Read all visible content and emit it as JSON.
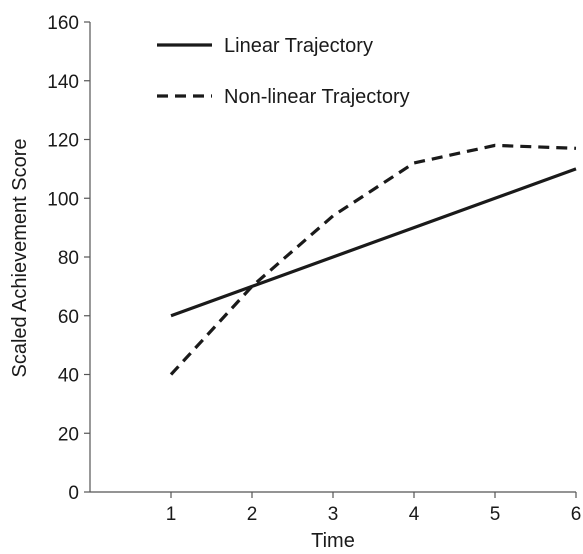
{
  "chart_data": {
    "type": "line",
    "title": "",
    "xlabel": "Time",
    "ylabel": "Scaled Achievement Score",
    "x": [
      1,
      2,
      3,
      4,
      5,
      6
    ],
    "xlim": [
      0,
      6
    ],
    "ylim": [
      0,
      160
    ],
    "xticks": [
      1,
      2,
      3,
      4,
      5,
      6
    ],
    "yticks": [
      0,
      20,
      40,
      60,
      80,
      100,
      120,
      140,
      160
    ],
    "grid": false,
    "legend_position": "top-left",
    "series": [
      {
        "name": "Linear Trajectory",
        "style": "solid",
        "color": "#1a1a1a",
        "values": [
          60,
          70,
          80,
          90,
          100,
          110
        ]
      },
      {
        "name": "Non-linear Trajectory",
        "style": "dashed",
        "color": "#1a1a1a",
        "values": [
          40,
          70,
          94,
          112,
          118,
          117
        ]
      }
    ]
  }
}
